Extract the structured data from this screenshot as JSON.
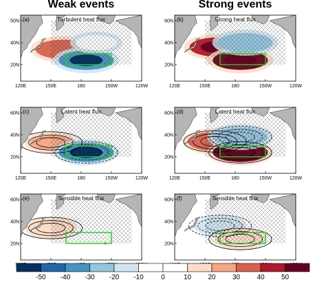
{
  "columns": [
    "Weak events",
    "Strong events"
  ],
  "chart_data": {
    "type": "heatmap",
    "panels": [
      {
        "label": "(a)",
        "title": "Turbulent heat flux",
        "column": "Weak events",
        "row": 0,
        "anomalies": [
          {
            "lon": 162,
            "lat": 34,
            "value": 30
          },
          {
            "lon": 185,
            "lat": 24,
            "value": -40
          },
          {
            "lon": 195,
            "lat": 40,
            "value": -10
          }
        ],
        "contours": false
      },
      {
        "label": "(b)",
        "title": "Strong heat flux",
        "column": "Strong events",
        "row": 0,
        "anomalies": [
          {
            "lon": 162,
            "lat": 36,
            "value": 40
          },
          {
            "lon": 185,
            "lat": 24,
            "value": 50
          },
          {
            "lon": 190,
            "lat": 40,
            "value": -30
          }
        ],
        "contours": false
      },
      {
        "label": "(c)",
        "title": "Latent heat flux",
        "column": "Weak events",
        "row": 1,
        "anomalies": [
          {
            "lon": 150,
            "lat": 33,
            "value": 20
          },
          {
            "lon": 185,
            "lat": 24,
            "value": -40
          }
        ],
        "contours": true
      },
      {
        "label": "(d)",
        "title": "Latent heat flux",
        "column": "Strong events",
        "row": 1,
        "anomalies": [
          {
            "lon": 160,
            "lat": 34,
            "value": 30
          },
          {
            "lon": 185,
            "lat": 24,
            "value": 50
          },
          {
            "lon": 185,
            "lat": 38,
            "value": -30
          }
        ],
        "contours": true
      },
      {
        "label": "(e)",
        "title": "Sensible heat flux",
        "column": "Weak events",
        "row": 2,
        "anomalies": [
          {
            "lon": 150,
            "lat": 34,
            "value": 10
          }
        ],
        "contours": true
      },
      {
        "label": "(f)",
        "title": "Sensible heat flux",
        "column": "Strong events",
        "row": 2,
        "anomalies": [
          {
            "lon": 165,
            "lat": 36,
            "value": -20
          },
          {
            "lon": 185,
            "lat": 24,
            "value": 10
          }
        ],
        "contours": true
      }
    ],
    "x_ticks": [
      "120E",
      "150E",
      "180",
      "150W",
      "120W"
    ],
    "y_ticks": [
      "20N",
      "40N",
      "60N"
    ],
    "y_ticks_a": [
      "20N",
      "40N",
      "50N"
    ],
    "lon_range": [
      120,
      240
    ],
    "lat_range": [
      5,
      65
    ],
    "highlight_box": {
      "lon": [
        165,
        210
      ],
      "lat": [
        20,
        30
      ],
      "color": "#22cc22"
    },
    "colorbar": {
      "ticks": [
        "-50",
        "-40",
        "-30",
        "-20",
        "-10",
        "0",
        "10",
        "20",
        "30",
        "40",
        "50"
      ],
      "colors": [
        "#053061",
        "#2166ac",
        "#4393c3",
        "#92c5de",
        "#d1e5f0",
        "#ffffff",
        "#ffffff",
        "#fddbc7",
        "#f4a582",
        "#d6604d",
        "#b2182b",
        "#67001f"
      ]
    }
  }
}
